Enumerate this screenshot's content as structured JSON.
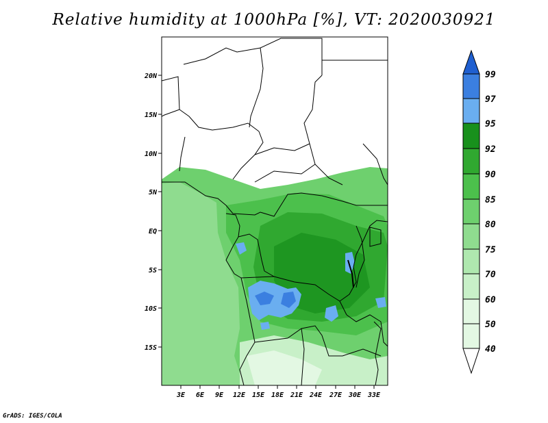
{
  "title": "Relative humidity at 1000hPa [%], VT: 2020030921",
  "footer": "GrADS: IGES/COLA",
  "map": {
    "lat_labels": [
      "20N",
      "15N",
      "10N",
      "5N",
      "EQ",
      "5S",
      "10S",
      "15S"
    ],
    "lon_labels": [
      "3E",
      "6E",
      "9E",
      "12E",
      "15E",
      "18E",
      "21E",
      "24E",
      "27E",
      "30E",
      "33E"
    ]
  },
  "colorbar": {
    "labels": [
      "99",
      "97",
      "95",
      "92",
      "90",
      "85",
      "80",
      "75",
      "70",
      "60",
      "50",
      "40"
    ],
    "colors": [
      "#1f5fd0",
      "#3b7fe0",
      "#6aaef0",
      "#18901c",
      "#30a830",
      "#4cc04c",
      "#6ed06e",
      "#8fdc8f",
      "#afe8af",
      "#c8f0c8",
      "#e3f8e3",
      "#ffffff"
    ]
  }
}
